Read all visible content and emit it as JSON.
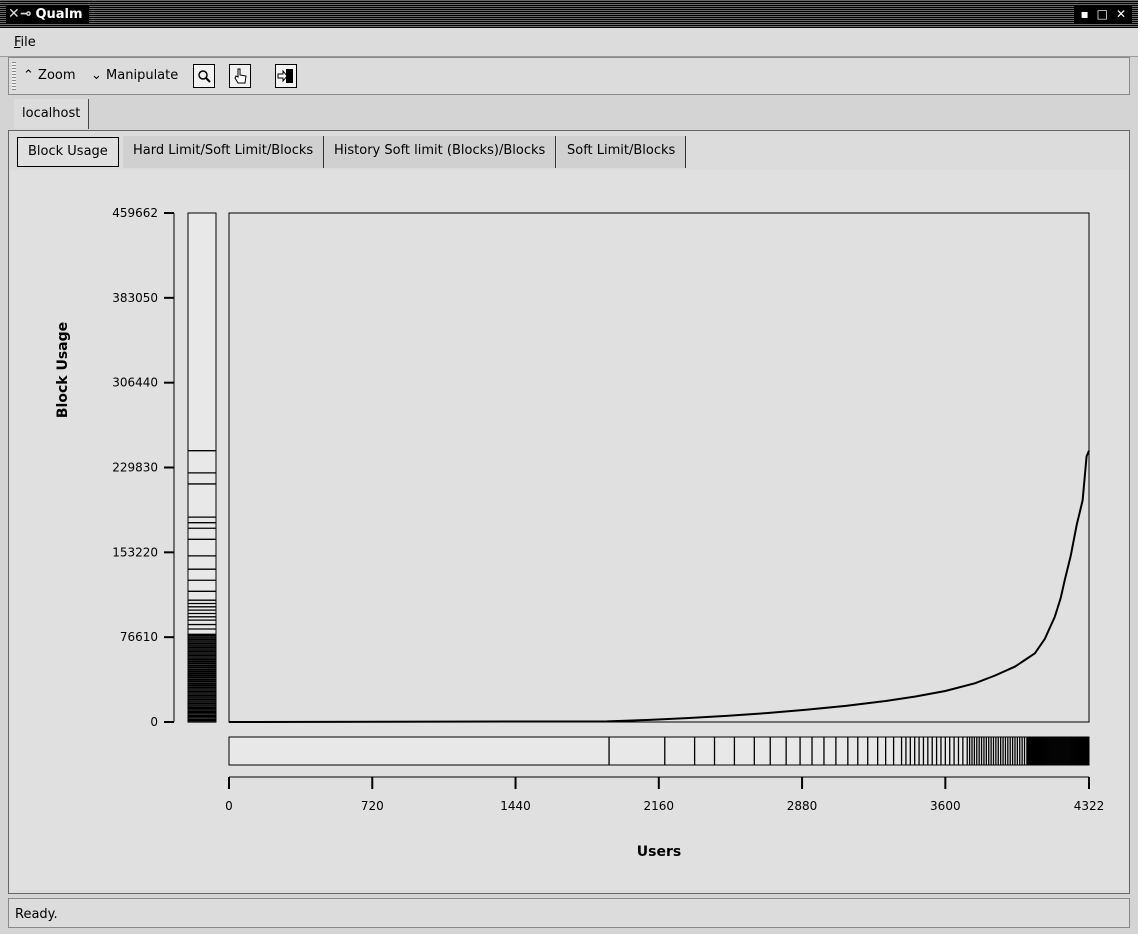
{
  "window": {
    "title": "Qualm",
    "controls": {
      "minimize": "▪",
      "maximize": "□",
      "close": "✕"
    }
  },
  "menu": {
    "file_prefix": "F",
    "file_rest": "ile"
  },
  "toolbar": {
    "zoom_label": "Zoom",
    "manipulate_label": "Manipulate",
    "icons": [
      "magnifier-icon",
      "pointing-hand-icon",
      "exit-door-icon"
    ]
  },
  "host_tab": {
    "label": "localhost"
  },
  "tabs": [
    {
      "label": "Block Usage",
      "active": true
    },
    {
      "label": "Hard Limit/Soft Limit/Blocks",
      "active": false
    },
    {
      "label": "History Soft limit (Blocks)/Blocks",
      "active": false
    },
    {
      "label": "Soft Limit/Blocks",
      "active": false
    }
  ],
  "chart_data": {
    "type": "line",
    "xlabel": "Users",
    "ylabel": "Block Usage",
    "xlim": [
      0,
      4322
    ],
    "ylim": [
      0,
      459662
    ],
    "x_ticks": [
      0,
      720,
      1440,
      2160,
      2880,
      3600,
      4322
    ],
    "y_ticks": [
      0,
      76610,
      153220,
      229830,
      306440,
      383050,
      459662
    ],
    "series": [
      {
        "x": [
          0,
          1900,
          2100,
          2300,
          2500,
          2700,
          2900,
          3100,
          3300,
          3450,
          3600,
          3750,
          3850,
          3950,
          4000,
          4050,
          4100,
          4150,
          4180,
          4200,
          4230,
          4260,
          4290,
          4310,
          4322
        ],
        "y": [
          0,
          500,
          1800,
          3500,
          5500,
          8000,
          11000,
          14500,
          19000,
          23000,
          28000,
          35000,
          42000,
          50000,
          56000,
          62000,
          75000,
          95000,
          112000,
          128000,
          150000,
          178000,
          200000,
          240000,
          245000
        ]
      }
    ],
    "grid": false,
    "rug_note": "marginal rug strips on both axes"
  },
  "status": {
    "text": "Ready."
  }
}
